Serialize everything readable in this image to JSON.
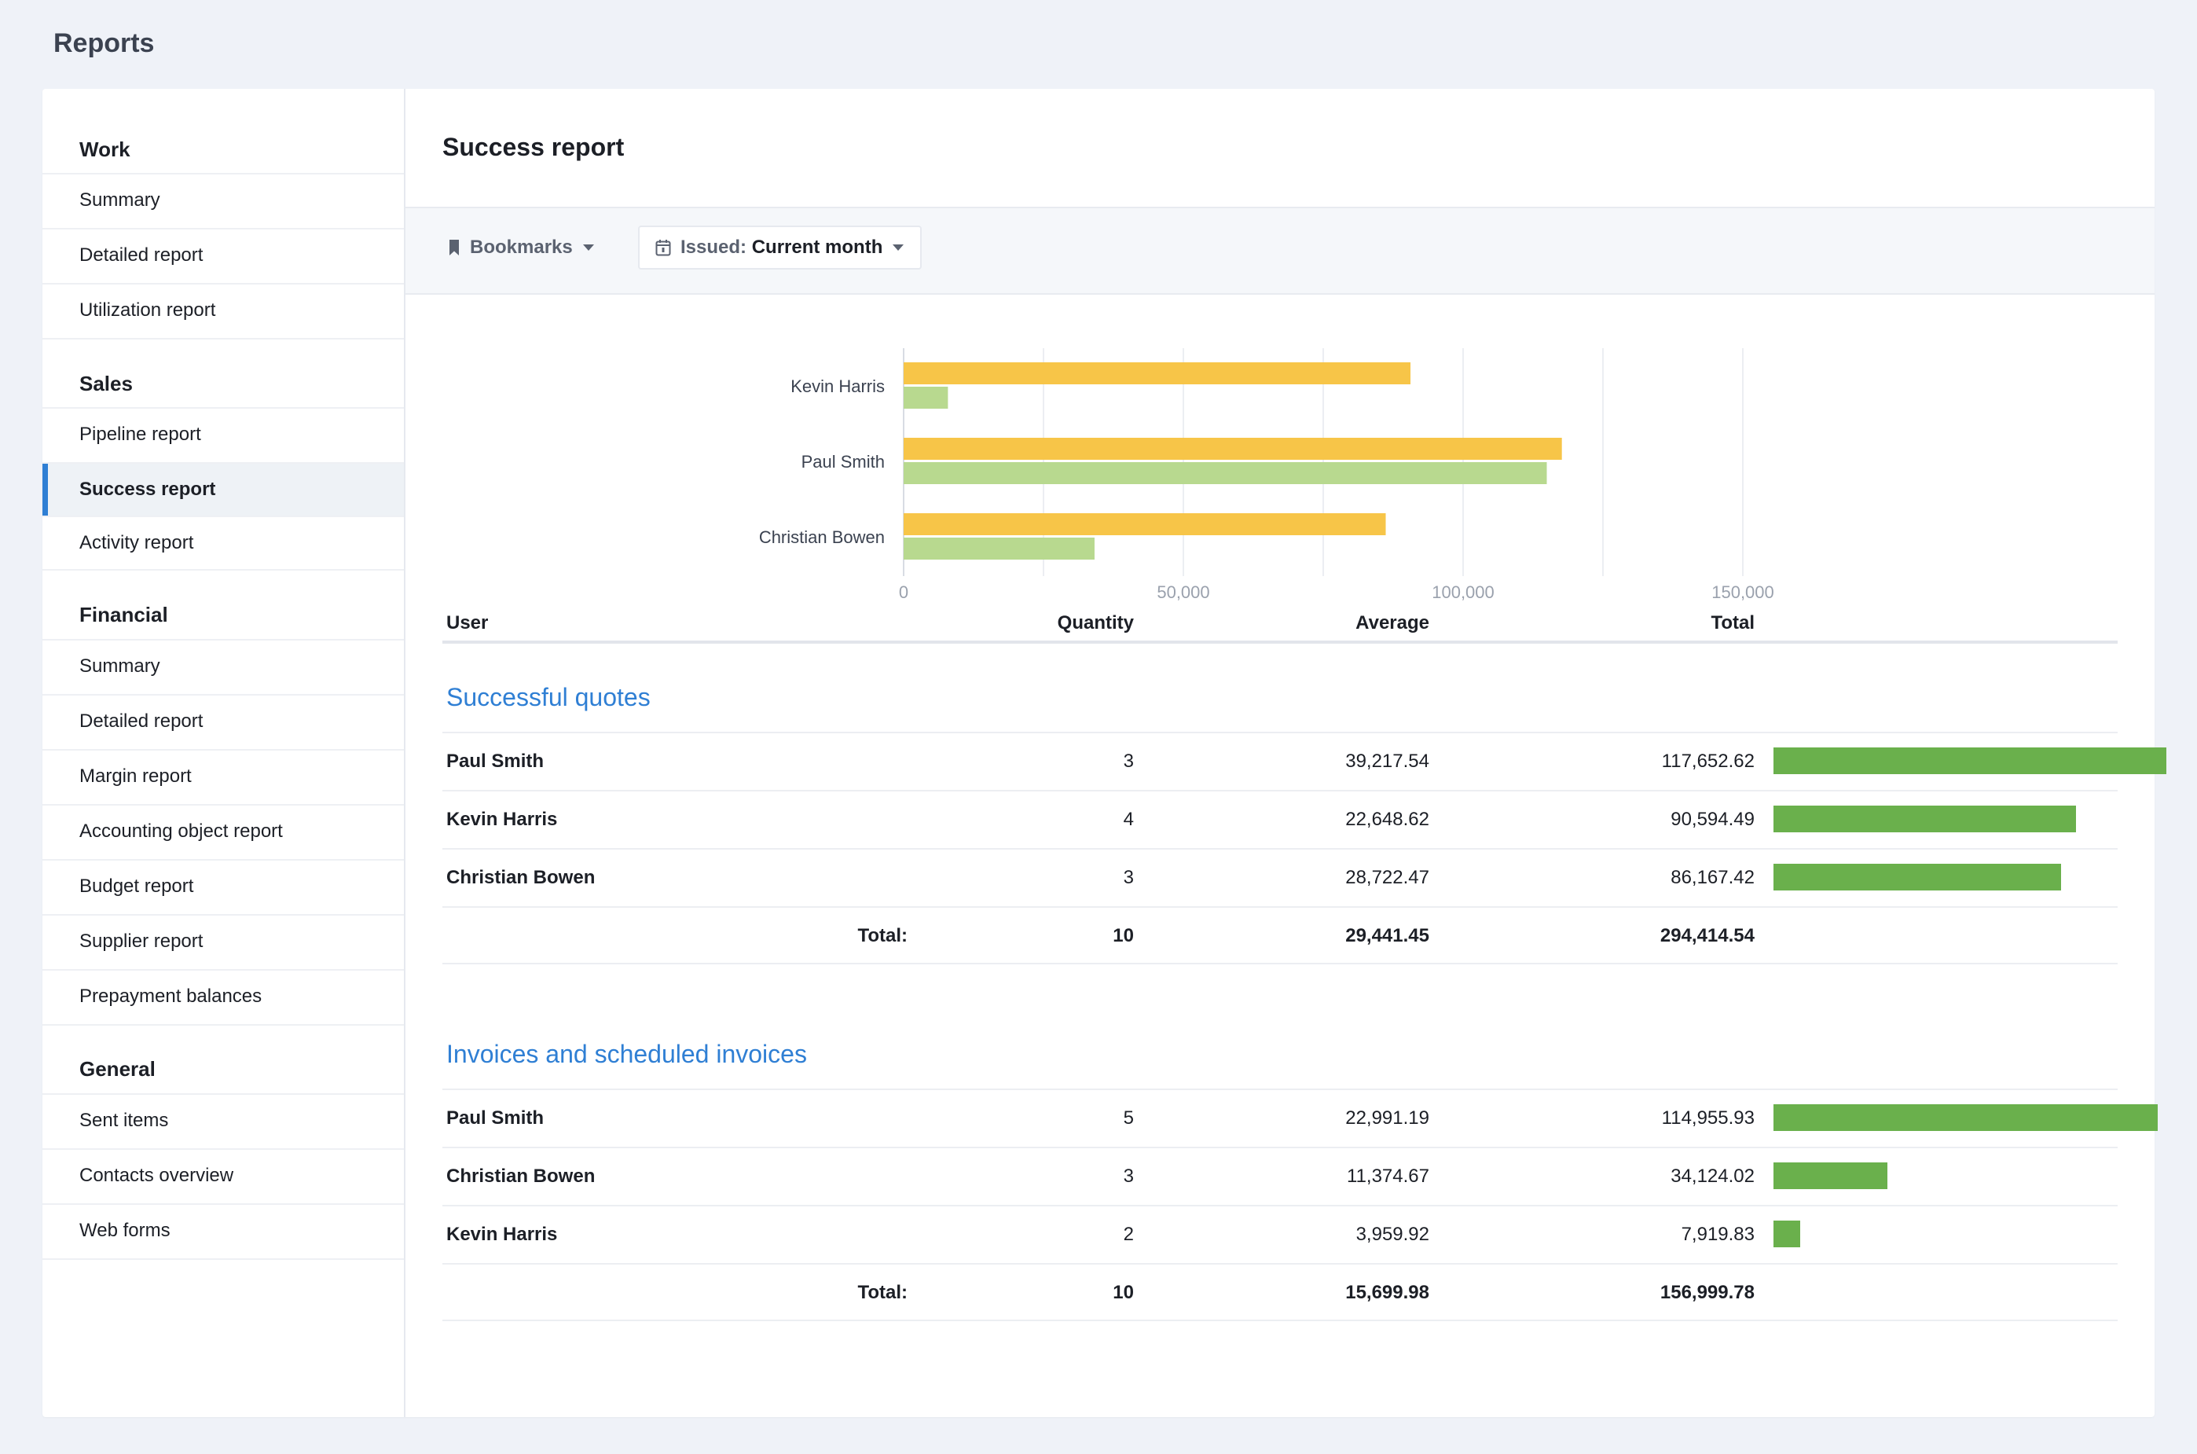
{
  "page_title": "Reports",
  "sidebar": {
    "sections": [
      {
        "heading": "Work",
        "items": [
          "Summary",
          "Detailed report",
          "Utilization report"
        ]
      },
      {
        "heading": "Sales",
        "items": [
          "Pipeline report",
          "Success report",
          "Activity report"
        ]
      },
      {
        "heading": "Financial",
        "items": [
          "Summary",
          "Detailed report",
          "Margin report",
          "Accounting object report",
          "Budget report",
          "Supplier report",
          "Prepayment balances"
        ]
      },
      {
        "heading": "General",
        "items": [
          "Sent items",
          "Contacts overview",
          "Web forms"
        ]
      }
    ],
    "active_item": "Success report"
  },
  "report": {
    "title": "Success report",
    "filters": {
      "bookmarks_label": "Bookmarks",
      "issued_label": "Issued:",
      "issued_value": "Current month"
    }
  },
  "colors": {
    "quotes_bar": "#f7c548",
    "invoices_bar": "#b8d98f",
    "total_bar": "#6ab04c",
    "accent": "#2f7fd4"
  },
  "chart_data": {
    "type": "bar",
    "orientation": "horizontal",
    "categories": [
      "Kevin Harris",
      "Paul Smith",
      "Christian Bowen"
    ],
    "series": [
      {
        "values": [
          90594.49,
          117652.62,
          86167.42
        ]
      },
      {
        "values": [
          7919.83,
          114955.93,
          34124.02
        ]
      }
    ],
    "x_ticks": [
      "0",
      "50,000",
      "100,000",
      "150,000"
    ],
    "xlim": [
      0,
      150000
    ],
    "grid": true
  },
  "table": {
    "columns": {
      "user": "User",
      "quantity": "Quantity",
      "average": "Average",
      "total": "Total"
    },
    "sections": [
      {
        "title": "Successful quotes",
        "rows": [
          {
            "user": "Paul Smith",
            "quantity": "3",
            "average": "39,217.54",
            "total": "117,652.62",
            "total_value": 117652.62
          },
          {
            "user": "Kevin Harris",
            "quantity": "4",
            "average": "22,648.62",
            "total": "90,594.49",
            "total_value": 90594.49
          },
          {
            "user": "Christian Bowen",
            "quantity": "3",
            "average": "28,722.47",
            "total": "86,167.42",
            "total_value": 86167.42
          }
        ],
        "totals": {
          "label": "Total:",
          "quantity": "10",
          "average": "29,441.45",
          "total": "294,414.54"
        }
      },
      {
        "title": "Invoices and scheduled invoices",
        "rows": [
          {
            "user": "Paul Smith",
            "quantity": "5",
            "average": "22,991.19",
            "total": "114,955.93",
            "total_value": 114955.93
          },
          {
            "user": "Christian Bowen",
            "quantity": "3",
            "average": "11,374.67",
            "total": "34,124.02",
            "total_value": 34124.02
          },
          {
            "user": "Kevin Harris",
            "quantity": "2",
            "average": "3,959.92",
            "total": "7,919.83",
            "total_value": 7919.83
          }
        ],
        "totals": {
          "label": "Total:",
          "quantity": "10",
          "average": "15,699.98",
          "total": "156,999.78"
        }
      }
    ],
    "bar_scale_max": 117652.62
  }
}
